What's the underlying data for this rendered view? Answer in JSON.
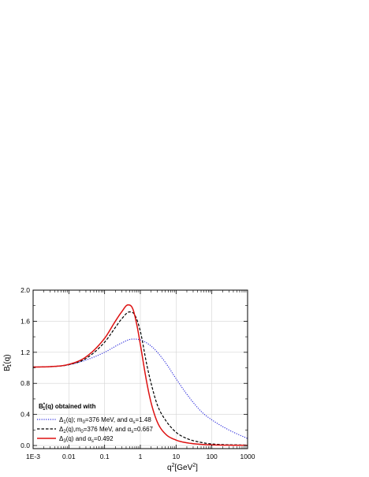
{
  "chart_data": {
    "type": "line",
    "x_scale": "log",
    "xlim": [
      0.001,
      1000
    ],
    "ylim": [
      -0.04,
      2.0
    ],
    "x_tick_labels": [
      "1E-3",
      "0.01",
      "0.1",
      "1",
      "10",
      "100",
      "1000"
    ],
    "y_tick_labels": [
      "0.0",
      "0.4",
      "0.8",
      "1.2",
      "1.6",
      "2.0"
    ],
    "grid": true,
    "legend_placement": "bottom-left",
    "legend_title": {
      "prefix": "B",
      "sup": "*",
      "sub": "1",
      "suffix": "(q) obtained with"
    },
    "xlabel": {
      "base": "q",
      "sup1": "2",
      "mid": "[GeV",
      "sup2": "2",
      "end": "]"
    },
    "ylabel": {
      "base": "B",
      "sup": "*",
      "sub": "1",
      "end": "(q)"
    },
    "series": [
      {
        "legend_parts": [
          {
            "t": "Δ"
          },
          {
            "t": "1",
            "sub": true
          },
          {
            "t": "(q); m"
          },
          {
            "t": "0",
            "sub": true
          },
          {
            "t": "=376 MeV, and α"
          },
          {
            "t": "s",
            "sub": true
          },
          {
            "t": "=1.48"
          }
        ],
        "color": "#3333dd",
        "style": "dotted",
        "x": [
          0.001,
          0.003,
          0.01,
          0.03,
          0.1,
          0.3,
          0.6,
          1,
          2,
          3,
          5,
          10,
          20,
          50,
          100,
          300,
          1000
        ],
        "y": [
          1.01,
          1.015,
          1.04,
          1.1,
          1.2,
          1.32,
          1.37,
          1.36,
          1.28,
          1.2,
          1.07,
          0.86,
          0.66,
          0.44,
          0.33,
          0.2,
          0.09
        ]
      },
      {
        "legend_parts": [
          {
            "t": "Δ"
          },
          {
            "t": "2",
            "sub": true
          },
          {
            "t": "(q),m"
          },
          {
            "t": "0",
            "sub": true
          },
          {
            "t": "=376 MeV, and α"
          },
          {
            "t": "s",
            "sub": true
          },
          {
            "t": "=0.667"
          }
        ],
        "color": "#000000",
        "style": "dashed",
        "x": [
          0.001,
          0.003,
          0.01,
          0.03,
          0.1,
          0.2,
          0.3,
          0.5,
          0.7,
          1,
          1.5,
          2,
          3,
          5,
          10,
          20,
          50,
          100,
          1000
        ],
        "y": [
          1.01,
          1.015,
          1.04,
          1.12,
          1.33,
          1.52,
          1.63,
          1.72,
          1.68,
          1.47,
          1.05,
          0.8,
          0.52,
          0.33,
          0.17,
          0.09,
          0.04,
          0.02,
          0.005
        ]
      },
      {
        "legend_parts": [
          {
            "t": "Δ"
          },
          {
            "t": "3",
            "sub": true
          },
          {
            "t": "(q) and α"
          },
          {
            "t": "s",
            "sub": true
          },
          {
            "t": "=0.492"
          }
        ],
        "color": "#dd1111",
        "style": "solid",
        "x": [
          0.001,
          0.003,
          0.01,
          0.03,
          0.1,
          0.2,
          0.3,
          0.45,
          0.6,
          0.8,
          1,
          1.5,
          2,
          3,
          5,
          10,
          20,
          50,
          100,
          1000
        ],
        "y": [
          1.01,
          1.015,
          1.045,
          1.14,
          1.38,
          1.6,
          1.72,
          1.81,
          1.77,
          1.55,
          1.3,
          0.82,
          0.55,
          0.3,
          0.15,
          0.07,
          0.035,
          0.015,
          0.008,
          0.002
        ]
      }
    ]
  }
}
